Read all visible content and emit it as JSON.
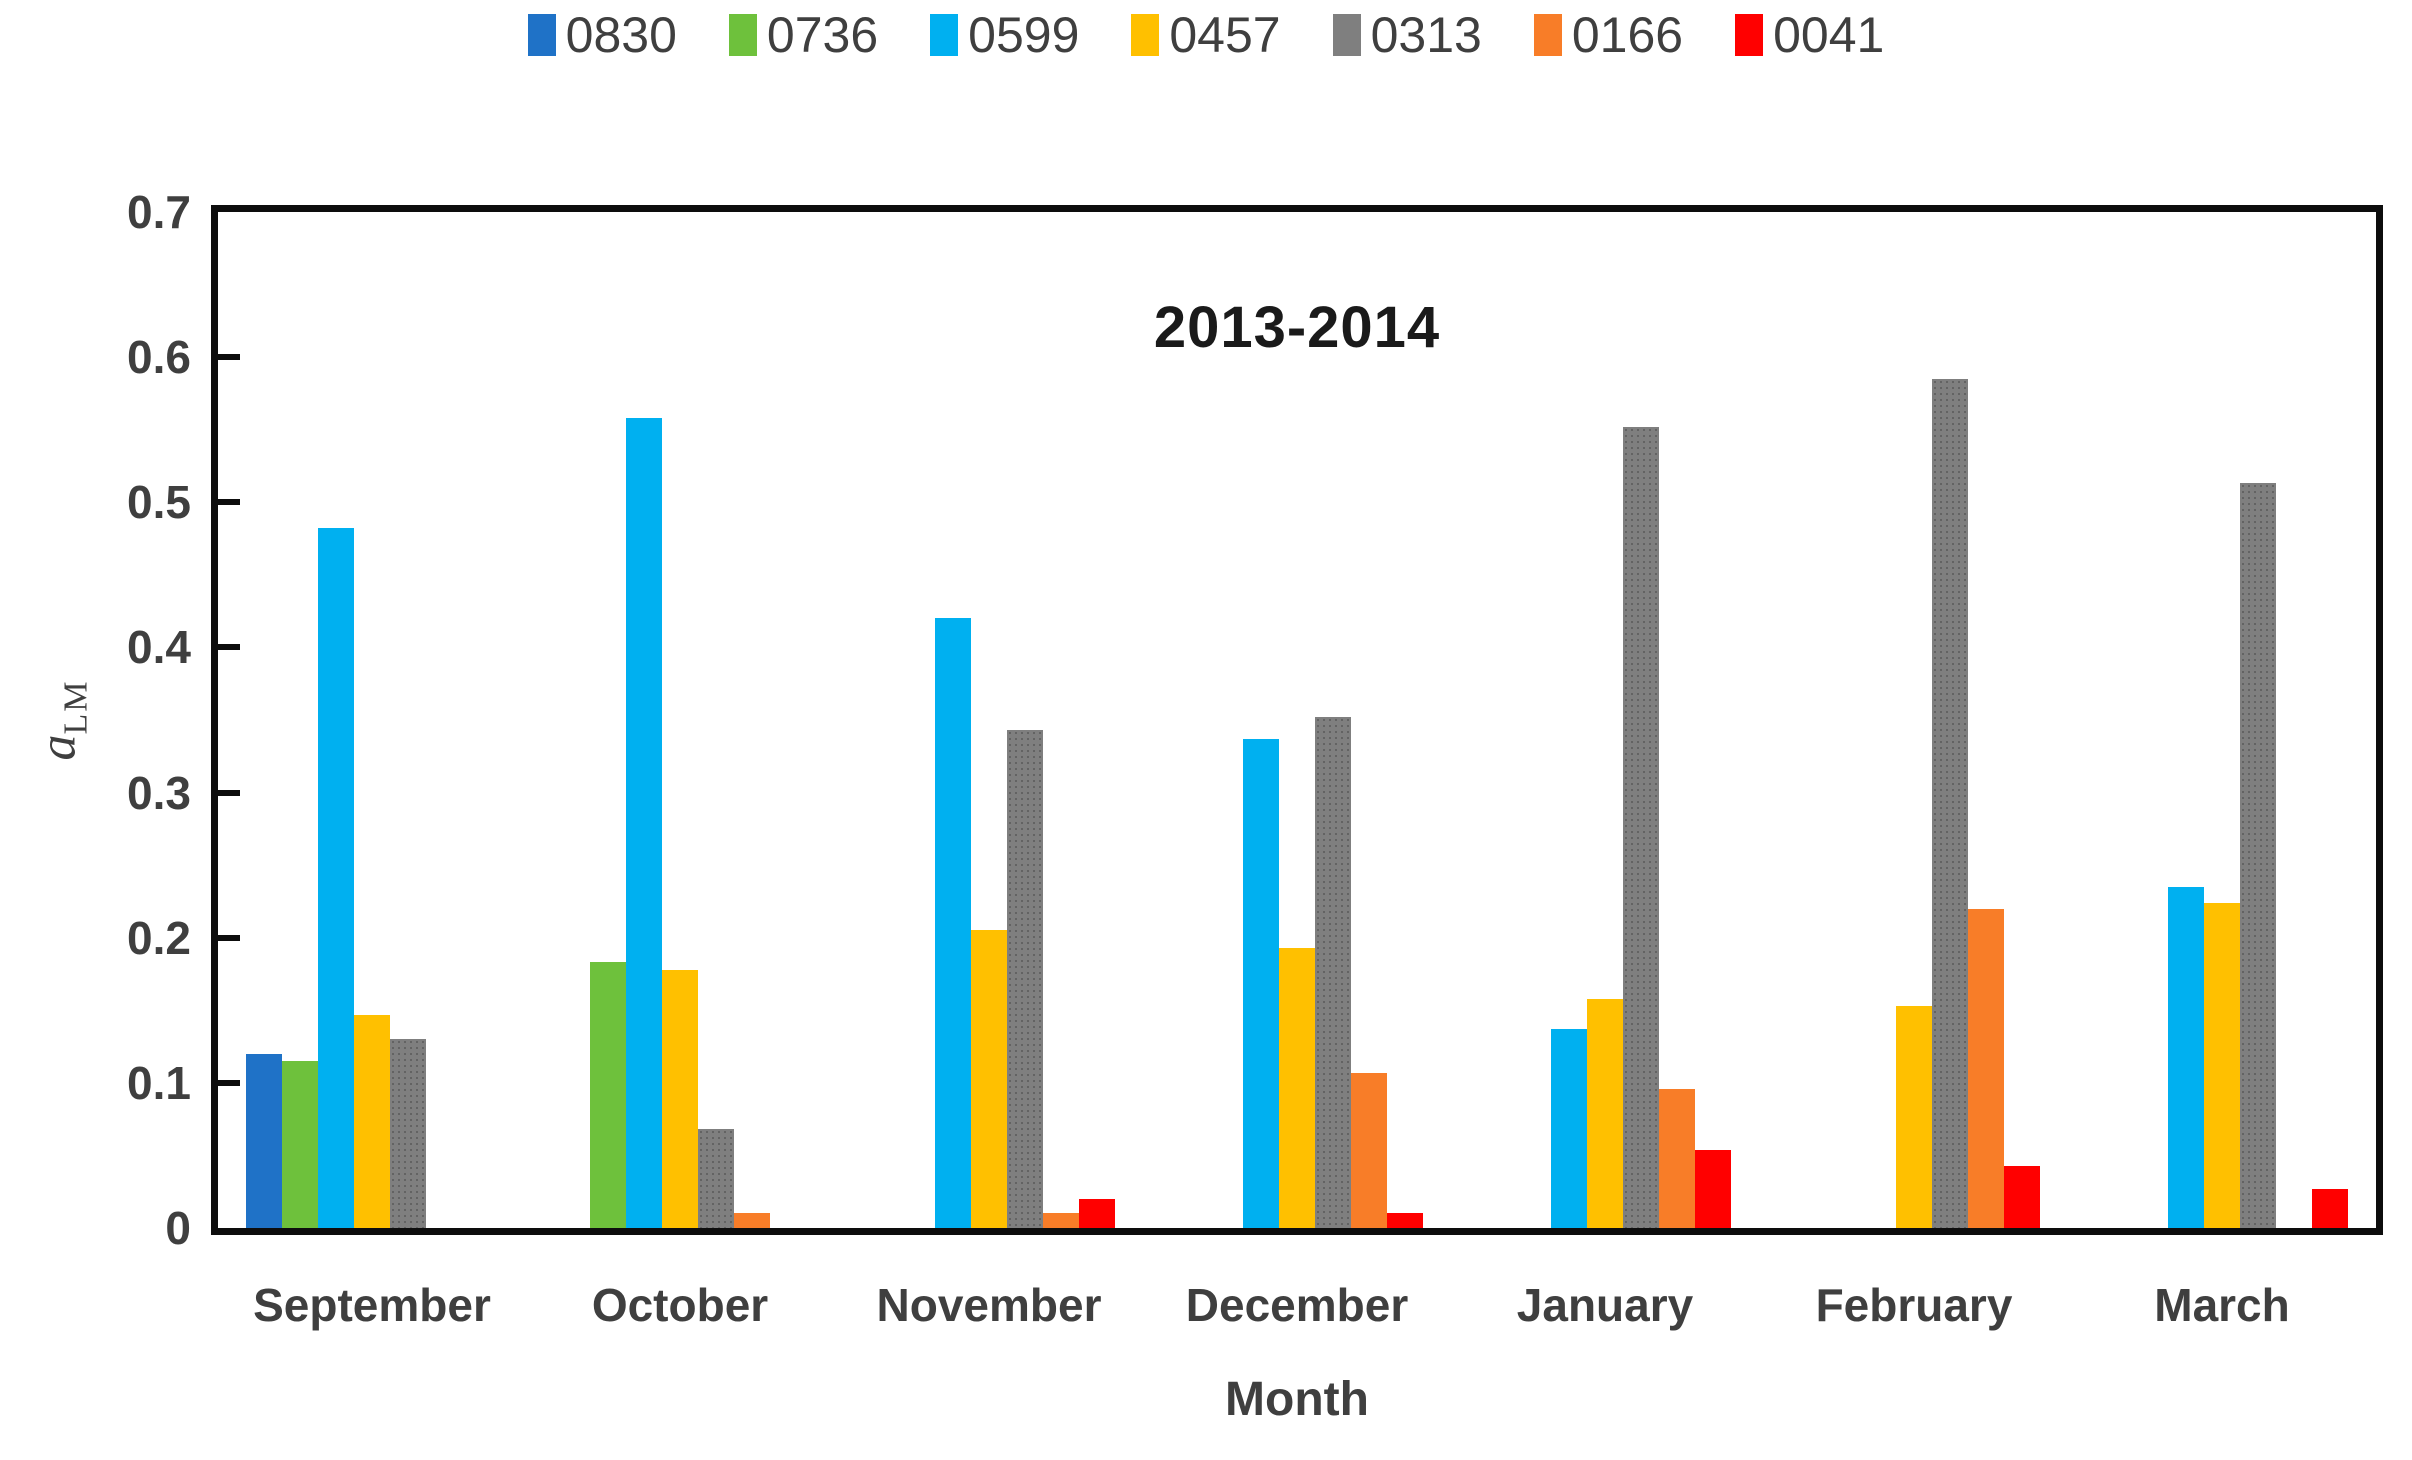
{
  "chart_data": {
    "type": "bar",
    "title": "2013-2014",
    "xlabel": "Month",
    "ylabel": "a_LM",
    "ylabel_base": "a",
    "ylabel_sub": "LM",
    "categories": [
      "September",
      "October",
      "November",
      "December",
      "January",
      "February",
      "March"
    ],
    "y_ticks": [
      "0",
      "0.1",
      "0.2",
      "0.3",
      "0.4",
      "0.5",
      "0.6",
      "0.7"
    ],
    "ylim": [
      0,
      0.7
    ],
    "grid": false,
    "legend_position": "top-center",
    "frame_color": "#0d0d0d",
    "text_color": "#3f3f3f",
    "series": [
      {
        "name": "0830",
        "color": "#1F72C7",
        "textured": false,
        "values": [
          0.12,
          0,
          0,
          0,
          0,
          0,
          0
        ]
      },
      {
        "name": "0736",
        "color": "#6EC13C",
        "textured": false,
        "values": [
          0.115,
          0.183,
          0,
          0,
          0,
          0,
          0
        ]
      },
      {
        "name": "0599",
        "color": "#00B0F0",
        "textured": false,
        "values": [
          0.482,
          0.558,
          0.42,
          0.337,
          0.137,
          0,
          0.235
        ]
      },
      {
        "name": "0457",
        "color": "#FFC000",
        "textured": false,
        "values": [
          0.147,
          0.178,
          0.205,
          0.193,
          0.158,
          0.153,
          0.224
        ]
      },
      {
        "name": "0313",
        "color": "#7F7F7F",
        "textured": true,
        "values": [
          0.13,
          0.068,
          0.343,
          0.352,
          0.552,
          0.585,
          0.513
        ]
      },
      {
        "name": "0166",
        "color": "#F87D28",
        "textured": false,
        "values": [
          0,
          0.01,
          0.01,
          0.107,
          0.096,
          0.22,
          0
        ]
      },
      {
        "name": "0041",
        "color": "#FF0000",
        "textured": false,
        "values": [
          0,
          0,
          0.02,
          0.01,
          0.054,
          0.043,
          0.027
        ]
      }
    ]
  }
}
